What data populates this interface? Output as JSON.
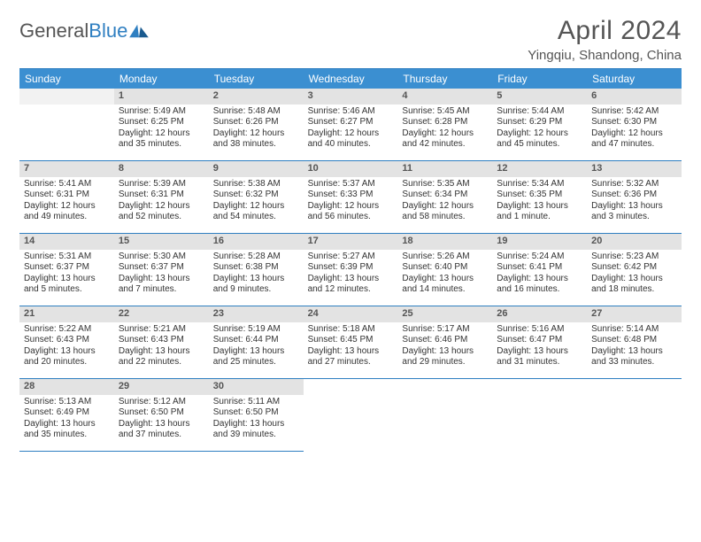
{
  "brand": {
    "general": "General",
    "blue": "Blue"
  },
  "title": "April 2024",
  "location": "Yingqiu, Shandong, China",
  "colors": {
    "header_bg": "#3b8fd1",
    "header_text": "#ffffff",
    "border": "#2f7fc1",
    "daynum_bg": "#e3e3e3",
    "text": "#333333",
    "title_text": "#555555"
  },
  "weekdays": [
    "Sunday",
    "Monday",
    "Tuesday",
    "Wednesday",
    "Thursday",
    "Friday",
    "Saturday",
    "Sunday"
  ],
  "first_weekday_offset": 1,
  "days": [
    {
      "n": 1,
      "sunrise": "5:49 AM",
      "sunset": "6:25 PM",
      "daylight": "12 hours and 35 minutes."
    },
    {
      "n": 2,
      "sunrise": "5:48 AM",
      "sunset": "6:26 PM",
      "daylight": "12 hours and 38 minutes."
    },
    {
      "n": 3,
      "sunrise": "5:46 AM",
      "sunset": "6:27 PM",
      "daylight": "12 hours and 40 minutes."
    },
    {
      "n": 4,
      "sunrise": "5:45 AM",
      "sunset": "6:28 PM",
      "daylight": "12 hours and 42 minutes."
    },
    {
      "n": 5,
      "sunrise": "5:44 AM",
      "sunset": "6:29 PM",
      "daylight": "12 hours and 45 minutes."
    },
    {
      "n": 6,
      "sunrise": "5:42 AM",
      "sunset": "6:30 PM",
      "daylight": "12 hours and 47 minutes."
    },
    {
      "n": 7,
      "sunrise": "5:41 AM",
      "sunset": "6:31 PM",
      "daylight": "12 hours and 49 minutes."
    },
    {
      "n": 8,
      "sunrise": "5:39 AM",
      "sunset": "6:31 PM",
      "daylight": "12 hours and 52 minutes."
    },
    {
      "n": 9,
      "sunrise": "5:38 AM",
      "sunset": "6:32 PM",
      "daylight": "12 hours and 54 minutes."
    },
    {
      "n": 10,
      "sunrise": "5:37 AM",
      "sunset": "6:33 PM",
      "daylight": "12 hours and 56 minutes."
    },
    {
      "n": 11,
      "sunrise": "5:35 AM",
      "sunset": "6:34 PM",
      "daylight": "12 hours and 58 minutes."
    },
    {
      "n": 12,
      "sunrise": "5:34 AM",
      "sunset": "6:35 PM",
      "daylight": "13 hours and 1 minute."
    },
    {
      "n": 13,
      "sunrise": "5:32 AM",
      "sunset": "6:36 PM",
      "daylight": "13 hours and 3 minutes."
    },
    {
      "n": 14,
      "sunrise": "5:31 AM",
      "sunset": "6:37 PM",
      "daylight": "13 hours and 5 minutes."
    },
    {
      "n": 15,
      "sunrise": "5:30 AM",
      "sunset": "6:37 PM",
      "daylight": "13 hours and 7 minutes."
    },
    {
      "n": 16,
      "sunrise": "5:28 AM",
      "sunset": "6:38 PM",
      "daylight": "13 hours and 9 minutes."
    },
    {
      "n": 17,
      "sunrise": "5:27 AM",
      "sunset": "6:39 PM",
      "daylight": "13 hours and 12 minutes."
    },
    {
      "n": 18,
      "sunrise": "5:26 AM",
      "sunset": "6:40 PM",
      "daylight": "13 hours and 14 minutes."
    },
    {
      "n": 19,
      "sunrise": "5:24 AM",
      "sunset": "6:41 PM",
      "daylight": "13 hours and 16 minutes."
    },
    {
      "n": 20,
      "sunrise": "5:23 AM",
      "sunset": "6:42 PM",
      "daylight": "13 hours and 18 minutes."
    },
    {
      "n": 21,
      "sunrise": "5:22 AM",
      "sunset": "6:43 PM",
      "daylight": "13 hours and 20 minutes."
    },
    {
      "n": 22,
      "sunrise": "5:21 AM",
      "sunset": "6:43 PM",
      "daylight": "13 hours and 22 minutes."
    },
    {
      "n": 23,
      "sunrise": "5:19 AM",
      "sunset": "6:44 PM",
      "daylight": "13 hours and 25 minutes."
    },
    {
      "n": 24,
      "sunrise": "5:18 AM",
      "sunset": "6:45 PM",
      "daylight": "13 hours and 27 minutes."
    },
    {
      "n": 25,
      "sunrise": "5:17 AM",
      "sunset": "6:46 PM",
      "daylight": "13 hours and 29 minutes."
    },
    {
      "n": 26,
      "sunrise": "5:16 AM",
      "sunset": "6:47 PM",
      "daylight": "13 hours and 31 minutes."
    },
    {
      "n": 27,
      "sunrise": "5:14 AM",
      "sunset": "6:48 PM",
      "daylight": "13 hours and 33 minutes."
    },
    {
      "n": 28,
      "sunrise": "5:13 AM",
      "sunset": "6:49 PM",
      "daylight": "13 hours and 35 minutes."
    },
    {
      "n": 29,
      "sunrise": "5:12 AM",
      "sunset": "6:50 PM",
      "daylight": "13 hours and 37 minutes."
    },
    {
      "n": 30,
      "sunrise": "5:11 AM",
      "sunset": "6:50 PM",
      "daylight": "13 hours and 39 minutes."
    }
  ],
  "labels": {
    "sunrise": "Sunrise:",
    "sunset": "Sunset:",
    "daylight": "Daylight:"
  }
}
